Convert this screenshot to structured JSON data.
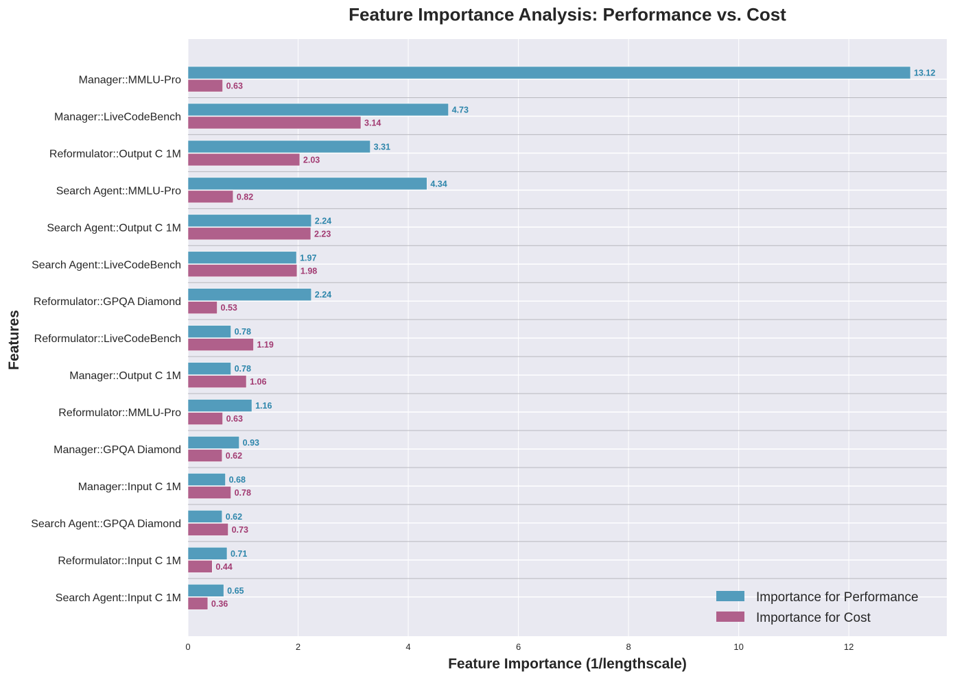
{
  "chart_data": {
    "type": "bar",
    "orientation": "horizontal",
    "title": "Feature Importance Analysis: Performance vs. Cost",
    "xlabel": "Feature Importance (1/lengthscale)",
    "ylabel": "Features",
    "xlim": [
      0,
      13.78
    ],
    "xticks": [
      0,
      2,
      4,
      6,
      8,
      10,
      12
    ],
    "grid": true,
    "legend_position": "bottom-right",
    "categories": [
      "Manager::MMLU-Pro",
      "Manager::LiveCodeBench",
      "Reformulator::Output C 1M",
      "Search Agent::MMLU-Pro",
      "Search Agent::Output C 1M",
      "Search Agent::LiveCodeBench",
      "Reformulator::GPQA Diamond",
      "Reformulator::LiveCodeBench",
      "Manager::Output C 1M",
      "Reformulator::MMLU-Pro",
      "Manager::GPQA Diamond",
      "Manager::Input C 1M",
      "Search Agent::GPQA Diamond",
      "Reformulator::Input C 1M",
      "Search Agent::Input C 1M"
    ],
    "series": [
      {
        "name": "Importance for Performance",
        "color": "#539cbc",
        "label_color": "#2e86ab",
        "values": [
          13.12,
          4.73,
          3.31,
          4.34,
          2.24,
          1.97,
          2.24,
          0.78,
          0.78,
          1.16,
          0.93,
          0.68,
          0.62,
          0.71,
          0.65
        ],
        "labels": [
          "13.12",
          "4.73",
          "3.31",
          "4.34",
          "2.24",
          "1.97",
          "2.24",
          "0.78",
          "0.78",
          "1.16",
          "0.93",
          "0.68",
          "0.62",
          "0.71",
          "0.65"
        ]
      },
      {
        "name": "Importance for Cost",
        "color": "#b0608b",
        "label_color": "#a23b72",
        "values": [
          0.63,
          3.14,
          2.03,
          0.82,
          2.23,
          1.98,
          0.53,
          1.19,
          1.06,
          0.63,
          0.62,
          0.78,
          0.73,
          0.44,
          0.36
        ],
        "labels": [
          "0.63",
          "3.14",
          "2.03",
          "0.82",
          "2.23",
          "1.98",
          "0.53",
          "1.19",
          "1.06",
          "0.63",
          "0.62",
          "0.78",
          "0.73",
          "0.44",
          "0.36"
        ]
      }
    ]
  }
}
